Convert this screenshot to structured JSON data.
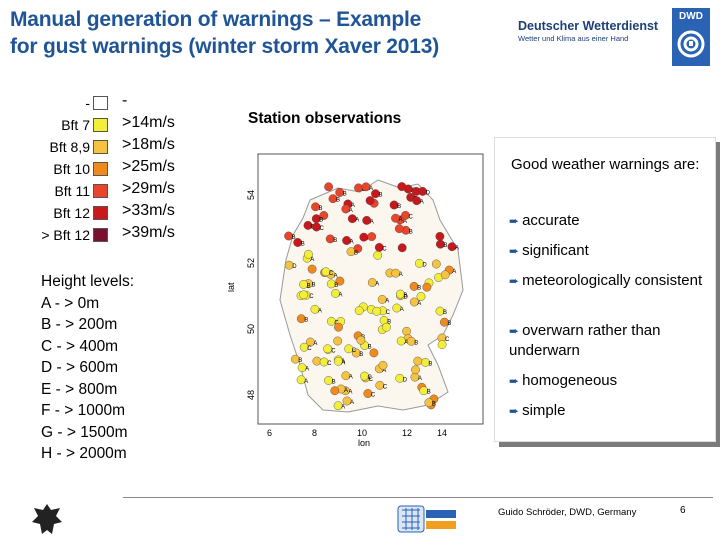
{
  "header": {
    "title_line1": "Manual generation of warnings – Example",
    "title_line2": "for gust warnings (winter storm Xaver 2013)",
    "org_name": "Deutscher Wetterdienst",
    "org_tagline": "Wetter und Klima aus einer Hand",
    "org_abbr": "DWD"
  },
  "legend": [
    {
      "bft": "-",
      "speed": "-",
      "color": "#ffffff"
    },
    {
      "bft": "Bft 7",
      "speed": ">14m/s",
      "color": "#f2ee3a"
    },
    {
      "bft": "Bft 8,9",
      "speed": ">18m/s",
      "color": "#f5c242"
    },
    {
      "bft": "Bft 10",
      "speed": ">25m/s",
      "color": "#f08a1e"
    },
    {
      "bft": "Bft 11",
      "speed": ">29m/s",
      "color": "#e8452a"
    },
    {
      "bft": "Bft 12",
      "speed": ">33m/s",
      "color": "#c8181c"
    },
    {
      "bft": "> Bft 12",
      "speed": ">39m/s",
      "color": "#7a1030"
    }
  ],
  "height_levels": {
    "title": "Height levels:",
    "items": [
      "A - > 0m",
      "B - > 200m",
      "C - > 400m",
      "D - > 600m",
      "E - > 800m",
      "F - > 1000m",
      "G - > 1500m",
      "H - > 2000m"
    ]
  },
  "map": {
    "subtitle": "Station observations",
    "xlabel": "lon",
    "ylabel": "lat",
    "xticks": [
      "6",
      "8",
      "10",
      "12",
      "14"
    ],
    "yticks": [
      "54",
      "52",
      "50",
      "48"
    ]
  },
  "callout": {
    "heading": "Good weather warnings are:",
    "items": [
      "accurate",
      "significant",
      "meteorologically consistent",
      "overwarn rather than underwarn",
      "homogeneous",
      "simple"
    ]
  },
  "footer": {
    "credit": "Guido Schröder, DWD, Germany",
    "page": "6"
  }
}
